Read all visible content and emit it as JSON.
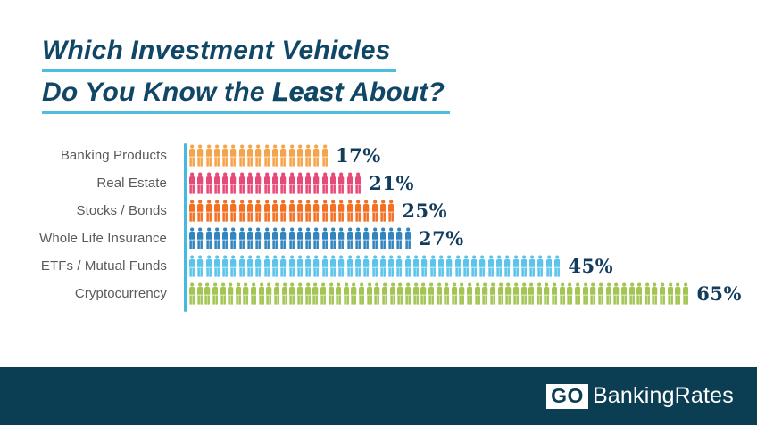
{
  "title": {
    "line1": "Which Investment Vehicles",
    "line2_pre": "Do You Know the ",
    "line2_bold": "Least",
    "line2_post": " About?",
    "text_color": "#114766",
    "underline_color": "#4FBEDE"
  },
  "chart_data": {
    "type": "bar",
    "subtype": "pictogram",
    "icon": "person-icon",
    "icon_unit": "1 person icon = 1%",
    "title": "Which Investment Vehicles Do You Know the Least About?",
    "categories": [
      "Banking Products",
      "Real Estate",
      "Stocks / Bonds",
      "Whole Life Insurance",
      "ETFs / Mutual Funds",
      "Cryptocurrency"
    ],
    "values": [
      17,
      21,
      25,
      27,
      45,
      65
    ],
    "value_labels": [
      "17%",
      "21%",
      "25%",
      "27%",
      "45%",
      "65%"
    ],
    "colors": [
      "#F6A44C",
      "#E84A78",
      "#F36F21",
      "#3285BE",
      "#5BC4EA",
      "#A3C653"
    ],
    "xlabel": "",
    "ylabel": "",
    "xlim": [
      0,
      100
    ],
    "grid": false,
    "legend": false,
    "axis_color": "#45BADF",
    "label_color": "#595A5C",
    "value_color": "#133C5C"
  },
  "footer": {
    "logo_go": "GO",
    "logo_rest": "BankingRates",
    "bar_color": "#0C3E53"
  }
}
